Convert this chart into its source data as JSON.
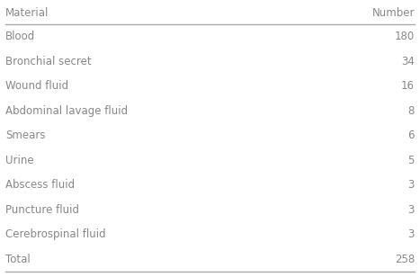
{
  "col1_header": "Material",
  "col2_header": "Number",
  "rows": [
    [
      "Blood",
      "180"
    ],
    [
      "Bronchial secret",
      "34"
    ],
    [
      "Wound fluid",
      "16"
    ],
    [
      "Abdominal lavage fluid",
      "8"
    ],
    [
      "Smears",
      "6"
    ],
    [
      "Urine",
      "5"
    ],
    [
      "Abscess fluid",
      "3"
    ],
    [
      "Puncture fluid",
      "3"
    ],
    [
      "Cerebrospinal fluid",
      "3"
    ],
    [
      "Total",
      "258"
    ]
  ],
  "header_line_color": "#aaaaaa",
  "text_color": "#888888",
  "background_color": "#ffffff",
  "font_size": 8.5,
  "fig_width": 4.67,
  "fig_height": 3.08,
  "dpi": 100
}
